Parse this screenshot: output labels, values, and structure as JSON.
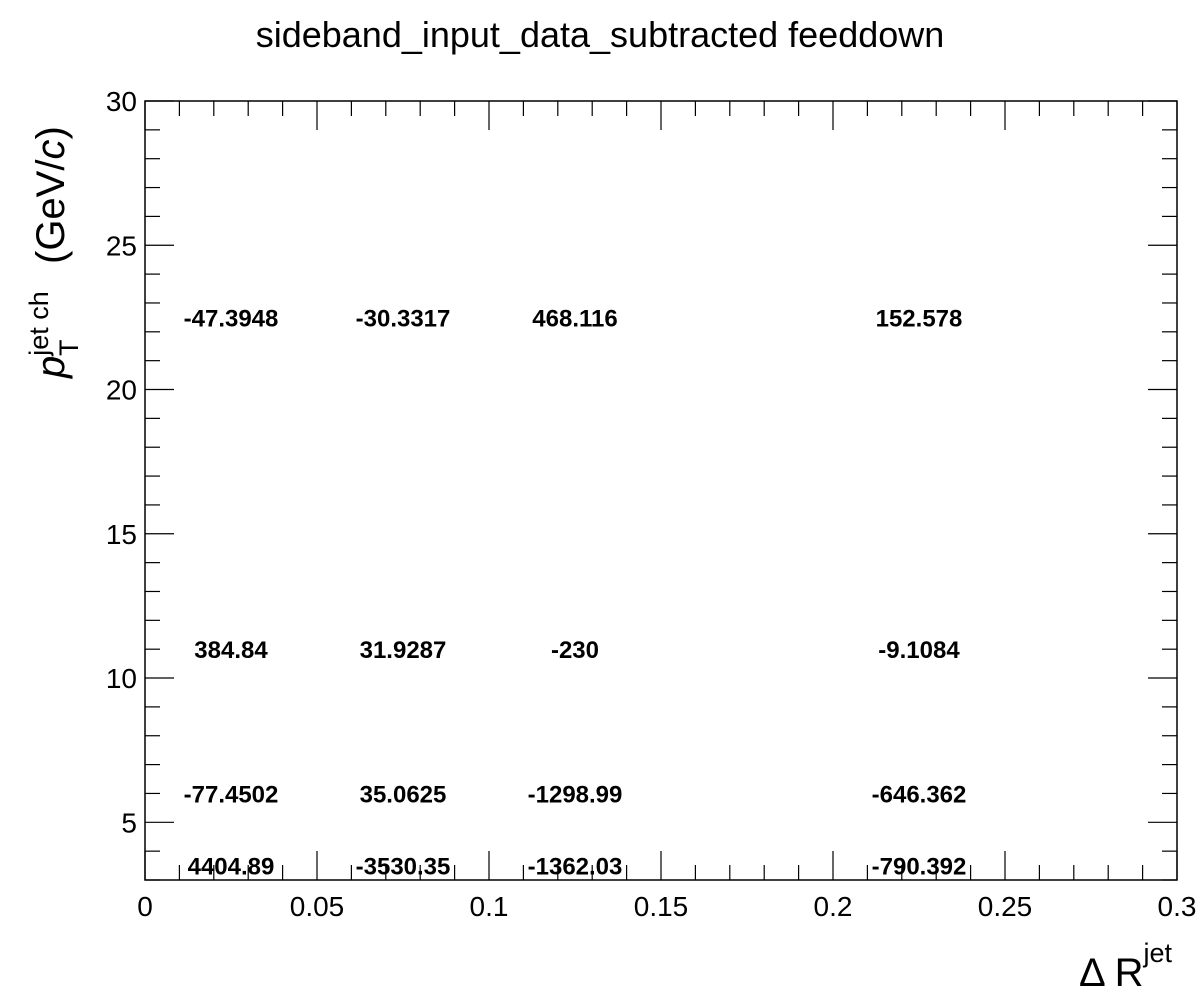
{
  "chart_data": {
    "type": "table",
    "title": "sideband_input_data_subtracted feeddown",
    "xlabel": {
      "main": "Δ R",
      "sup": "jet"
    },
    "ylabel": {
      "italic_p": "p",
      "sub": "T",
      "sup": "jet ch",
      "unit_prefix": "(GeV/",
      "unit_c": "c",
      "unit_suffix": ")"
    },
    "xlim": [
      0,
      0.3
    ],
    "ylim": [
      3,
      30
    ],
    "x_ticks": [
      {
        "v": 0,
        "label": "0"
      },
      {
        "v": 0.05,
        "label": "0.05"
      },
      {
        "v": 0.1,
        "label": "0.1"
      },
      {
        "v": 0.15,
        "label": "0.15"
      },
      {
        "v": 0.2,
        "label": "0.2"
      },
      {
        "v": 0.25,
        "label": "0.25"
      },
      {
        "v": 0.3,
        "label": "0.3"
      }
    ],
    "y_ticks": [
      {
        "v": 5,
        "label": "5"
      },
      {
        "v": 10,
        "label": "10"
      },
      {
        "v": 15,
        "label": "15"
      },
      {
        "v": 20,
        "label": "20"
      },
      {
        "v": 25,
        "label": "25"
      },
      {
        "v": 30,
        "label": "30"
      }
    ],
    "x_bin_edges": [
      0.01,
      0.05,
      0.1,
      0.15,
      0.3
    ],
    "y_bin_edges": [
      3,
      5,
      7,
      15,
      30
    ],
    "cells": [
      {
        "x": 0.025,
        "y": 3.5,
        "label": "4404.89"
      },
      {
        "x": 0.075,
        "y": 3.5,
        "label": "-3530.35"
      },
      {
        "x": 0.125,
        "y": 3.5,
        "label": "-1362.03"
      },
      {
        "x": 0.225,
        "y": 3.5,
        "label": "-790.392"
      },
      {
        "x": 0.025,
        "y": 6.0,
        "label": "-77.4502"
      },
      {
        "x": 0.075,
        "y": 6.0,
        "label": "35.0625"
      },
      {
        "x": 0.125,
        "y": 6.0,
        "label": "-1298.99"
      },
      {
        "x": 0.225,
        "y": 6.0,
        "label": "-646.362"
      },
      {
        "x": 0.025,
        "y": 11.0,
        "label": "384.84"
      },
      {
        "x": 0.075,
        "y": 11.0,
        "label": "31.9287"
      },
      {
        "x": 0.125,
        "y": 11.0,
        "label": "-230"
      },
      {
        "x": 0.225,
        "y": 11.0,
        "label": "-9.1084"
      },
      {
        "x": 0.025,
        "y": 22.5,
        "label": "-47.3948"
      },
      {
        "x": 0.075,
        "y": 22.5,
        "label": "-30.3317"
      },
      {
        "x": 0.125,
        "y": 22.5,
        "label": "468.116"
      },
      {
        "x": 0.225,
        "y": 22.5,
        "label": "152.578"
      }
    ]
  }
}
